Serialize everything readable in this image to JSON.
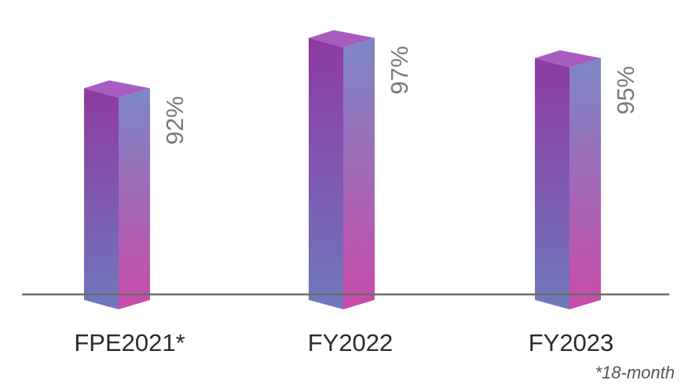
{
  "chart_data": {
    "type": "bar",
    "categories": [
      "FPE2021*",
      "FY2022",
      "FY2023"
    ],
    "values": [
      92,
      97,
      95
    ],
    "value_labels": [
      "92%",
      "97%",
      "95%"
    ],
    "unit": "%",
    "title": "",
    "xlabel": "",
    "ylabel": "",
    "ylim": [
      0,
      100
    ],
    "grid": false,
    "legend": "none",
    "style": "3d-bars"
  },
  "footnote": "*18-month",
  "colors": {
    "bar_front_top": "#8e3aa3",
    "bar_front_bottom": "#6f78bd",
    "bar_side_top": "#7c88c6",
    "bar_side_bottom": "#c94aa9",
    "bar_top_face": "#a85cc0",
    "baseline": "#6b6b6b",
    "category_text": "#2b2b2b",
    "value_text": "#7a7a7a"
  }
}
